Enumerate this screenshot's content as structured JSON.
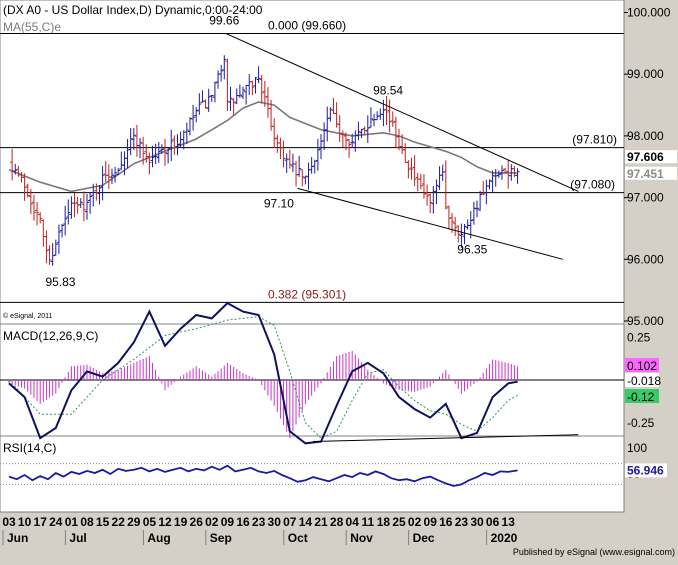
{
  "header": {
    "title": "(DX A0 - US Dollar Index,D) Dynamic,0:00-24:00",
    "ma_label": "MA(55,C)",
    "ma_suffix": "e",
    "copyright": "© eSignal, 2011",
    "publisher": "Published by eSignal (www.esignal.com)"
  },
  "colors": {
    "bull": "#1a1aa0",
    "bear": "#c02020",
    "ma": "#7a7a7a",
    "macd_line": "#101060",
    "signal_line": "#2a9a55",
    "histogram": "#cc33cc",
    "annotation": "#8b1a1a",
    "rsi": "#1a1aa0",
    "trendline": "#000000"
  },
  "chart_data": [
    {
      "type": "candlestick",
      "panel": "price",
      "y_range": [
        95.0,
        100.0
      ],
      "y_ticks": [
        "100.000",
        "99.000",
        "98.000",
        "97.000",
        "96.000",
        "95.000"
      ],
      "x_tick_labels": [
        "03",
        "10",
        "17",
        "24",
        "01",
        "08",
        "15",
        "22",
        "29",
        "05",
        "12",
        "19",
        "26",
        "02",
        "09",
        "16",
        "23",
        "30",
        "07",
        "14",
        "21",
        "28",
        "04",
        "11",
        "18",
        "25",
        "02",
        "09",
        "16",
        "23",
        "30",
        "06",
        "13"
      ],
      "month_labels": [
        "Jun",
        "Jul",
        "Aug",
        "Sep",
        "Oct",
        "Nov",
        "Dec",
        "2020"
      ],
      "month_positions": [
        0,
        4,
        9,
        13,
        18,
        22,
        26,
        31
      ],
      "close_path": [
        [
          0,
          97.6
        ],
        [
          1,
          97.2
        ],
        [
          2,
          96.6
        ],
        [
          2.6,
          95.95
        ],
        [
          3,
          96.3
        ],
        [
          4,
          96.85
        ],
        [
          5,
          96.9
        ],
        [
          6,
          97.3
        ],
        [
          7,
          97.5
        ],
        [
          8,
          98.0
        ],
        [
          9,
          97.6
        ],
        [
          10,
          97.8
        ],
        [
          11,
          97.9
        ],
        [
          12,
          98.4
        ],
        [
          13,
          98.6
        ],
        [
          13.8,
          99.3
        ],
        [
          14,
          98.5
        ],
        [
          15,
          98.7
        ],
        [
          16,
          98.95
        ],
        [
          17,
          98.0
        ],
        [
          18,
          97.5
        ],
        [
          19,
          97.3
        ],
        [
          20,
          97.9
        ],
        [
          20.6,
          98.4
        ],
        [
          21,
          98.15
        ],
        [
          22,
          97.9
        ],
        [
          23,
          98.2
        ],
        [
          24,
          98.5
        ],
        [
          25,
          97.9
        ],
        [
          26,
          97.3
        ],
        [
          27,
          96.9
        ],
        [
          27.8,
          97.4
        ],
        [
          28,
          96.8
        ],
        [
          29,
          96.4
        ],
        [
          30,
          96.9
        ],
        [
          31,
          97.3
        ],
        [
          32,
          97.4
        ],
        [
          32.6,
          97.45
        ]
      ],
      "moving_average_55": [
        [
          0,
          97.45
        ],
        [
          2,
          97.25
        ],
        [
          4,
          97.1
        ],
        [
          6,
          97.2
        ],
        [
          8,
          97.55
        ],
        [
          10,
          97.75
        ],
        [
          12,
          97.95
        ],
        [
          14,
          98.25
        ],
        [
          15,
          98.45
        ],
        [
          16,
          98.55
        ],
        [
          17,
          98.5
        ],
        [
          18,
          98.3
        ],
        [
          20,
          98.1
        ],
        [
          22,
          98.0
        ],
        [
          24,
          98.05
        ],
        [
          25,
          98.0
        ],
        [
          26,
          97.9
        ],
        [
          28,
          97.75
        ],
        [
          29,
          97.65
        ],
        [
          30,
          97.5
        ],
        [
          31,
          97.4
        ],
        [
          32.6,
          97.4
        ]
      ],
      "horizontal_levels": [
        {
          "value": 99.66,
          "label": "0.000 (99.660)"
        },
        {
          "value": 97.81,
          "label": "(97.810)"
        },
        {
          "value": 97.08,
          "label": "(97.080)"
        },
        {
          "value": 95.301,
          "label": "0.382 (95.301)"
        }
      ],
      "trendlines": [
        {
          "from": [
            13.9,
            99.66
          ],
          "to": [
            36.5,
            97.1
          ]
        },
        {
          "from": [
            18.5,
            97.15
          ],
          "to": [
            35.5,
            96.0
          ]
        }
      ],
      "price_labels": [
        {
          "text": "99.66",
          "x": 13.8,
          "y": 99.66
        },
        {
          "text": "98.54",
          "x": 24.3,
          "y": 98.54
        },
        {
          "text": "97.10",
          "x": 17.3,
          "y": 97.1
        },
        {
          "text": "96.35",
          "x": 29.7,
          "y": 96.35
        },
        {
          "text": "95.83",
          "x": 3.3,
          "y": 95.83
        }
      ],
      "current_value_tags": [
        {
          "text": "97.606",
          "value": 97.606,
          "color": "#000000"
        },
        {
          "text": "97.451",
          "value": 97.451,
          "color": "#8a8a8a"
        }
      ]
    },
    {
      "type": "line",
      "panel": "macd",
      "name": "MACD(12,26,9,C)",
      "y_range": [
        -0.45,
        0.45
      ],
      "y_ticks": [
        "0.25",
        "-0.25"
      ],
      "y_tick_values": [
        0.25,
        -0.25
      ],
      "zero_line": 0.0,
      "macd_path": [
        [
          0,
          -0.02
        ],
        [
          1,
          -0.1
        ],
        [
          2,
          -0.34
        ],
        [
          3,
          -0.28
        ],
        [
          4,
          -0.06
        ],
        [
          5,
          0.05
        ],
        [
          6,
          0.02
        ],
        [
          7,
          0.1
        ],
        [
          8,
          0.22
        ],
        [
          9,
          0.4
        ],
        [
          10,
          0.2
        ],
        [
          11,
          0.3
        ],
        [
          12,
          0.38
        ],
        [
          13,
          0.36
        ],
        [
          14,
          0.45
        ],
        [
          15,
          0.4
        ],
        [
          16,
          0.38
        ],
        [
          17,
          0.15
        ],
        [
          18,
          -0.3
        ],
        [
          19,
          -0.37
        ],
        [
          20,
          -0.36
        ],
        [
          21,
          -0.15
        ],
        [
          22,
          0.05
        ],
        [
          23,
          0.1
        ],
        [
          24,
          0.04
        ],
        [
          25,
          -0.1
        ],
        [
          26,
          -0.17
        ],
        [
          27,
          -0.22
        ],
        [
          28,
          -0.14
        ],
        [
          29,
          -0.34
        ],
        [
          30,
          -0.31
        ],
        [
          31,
          -0.1
        ],
        [
          32,
          -0.02
        ],
        [
          32.6,
          -0.01
        ]
      ],
      "signal_path": [
        [
          0,
          0.0
        ],
        [
          2,
          -0.2
        ],
        [
          4,
          -0.2
        ],
        [
          6,
          0.0
        ],
        [
          8,
          0.12
        ],
        [
          10,
          0.26
        ],
        [
          12,
          0.3
        ],
        [
          14,
          0.35
        ],
        [
          16,
          0.37
        ],
        [
          17,
          0.32
        ],
        [
          18,
          0.05
        ],
        [
          19,
          -0.25
        ],
        [
          20,
          -0.34
        ],
        [
          21,
          -0.3
        ],
        [
          22,
          -0.12
        ],
        [
          23,
          0.04
        ],
        [
          24,
          0.06
        ],
        [
          25,
          -0.04
        ],
        [
          26,
          -0.12
        ],
        [
          27,
          -0.18
        ],
        [
          28,
          -0.2
        ],
        [
          29,
          -0.26
        ],
        [
          30,
          -0.3
        ],
        [
          31,
          -0.22
        ],
        [
          32,
          -0.12
        ],
        [
          32.6,
          -0.09
        ]
      ],
      "histogram": [
        [
          0,
          -0.02
        ],
        [
          1,
          -0.05
        ],
        [
          2,
          -0.14
        ],
        [
          3,
          -0.08
        ],
        [
          4,
          0.08
        ],
        [
          5,
          0.09
        ],
        [
          6,
          0.04
        ],
        [
          7,
          0.06
        ],
        [
          8,
          0.1
        ],
        [
          9,
          0.14
        ],
        [
          10,
          -0.06
        ],
        [
          11,
          0.02
        ],
        [
          12,
          0.08
        ],
        [
          13,
          0.02
        ],
        [
          14,
          0.1
        ],
        [
          15,
          0.04
        ],
        [
          16,
          0.0
        ],
        [
          17,
          -0.15
        ],
        [
          18,
          -0.34
        ],
        [
          19,
          -0.14
        ],
        [
          20,
          -0.02
        ],
        [
          21,
          0.14
        ],
        [
          22,
          0.17
        ],
        [
          23,
          0.06
        ],
        [
          24,
          -0.02
        ],
        [
          25,
          -0.06
        ],
        [
          26,
          -0.07
        ],
        [
          27,
          -0.04
        ],
        [
          28,
          0.06
        ],
        [
          29,
          -0.08
        ],
        [
          30,
          -0.01
        ],
        [
          31,
          0.12
        ],
        [
          32,
          0.1
        ],
        [
          32.6,
          0.08
        ]
      ],
      "support_line": {
        "from": [
          19.5,
          -0.36
        ],
        "to": [
          36.5,
          -0.32
        ]
      },
      "value_tags": [
        {
          "text": "0.102",
          "value": 0.102,
          "bg": "#ff66ff",
          "fg": "#000000"
        },
        {
          "text": "-0.018",
          "value": -0.018,
          "bg": "#ffffff",
          "fg": "#000000"
        },
        {
          "text": "-0.12",
          "value": -0.12,
          "bg": "#33cc66",
          "fg": "#000000"
        }
      ]
    },
    {
      "type": "line",
      "panel": "rsi",
      "name": "RSI(14,C)",
      "y_range": [
        0,
        100
      ],
      "y_ticks": [
        "100",
        "50"
      ],
      "y_tick_values": [
        100,
        50
      ],
      "reference_levels": [
        70,
        30
      ],
      "rsi_path": [
        [
          0,
          45
        ],
        [
          0.5,
          40
        ],
        [
          1,
          48
        ],
        [
          1.5,
          38
        ],
        [
          2,
          46
        ],
        [
          2.5,
          40
        ],
        [
          3,
          52
        ],
        [
          3.5,
          45
        ],
        [
          4,
          54
        ],
        [
          4.5,
          50
        ],
        [
          5,
          56
        ],
        [
          5.5,
          52
        ],
        [
          6,
          58
        ],
        [
          6.5,
          50
        ],
        [
          7,
          60
        ],
        [
          7.5,
          56
        ],
        [
          8,
          58
        ],
        [
          8.5,
          62
        ],
        [
          9,
          55
        ],
        [
          9.5,
          60
        ],
        [
          10,
          54
        ],
        [
          10.5,
          58
        ],
        [
          11,
          62
        ],
        [
          11.5,
          55
        ],
        [
          12,
          60
        ],
        [
          12.5,
          57
        ],
        [
          13,
          64
        ],
        [
          13.5,
          58
        ],
        [
          14,
          66
        ],
        [
          14.5,
          55
        ],
        [
          15,
          58
        ],
        [
          15.5,
          62
        ],
        [
          16,
          55
        ],
        [
          16.5,
          52
        ],
        [
          17,
          56
        ],
        [
          17.5,
          48
        ],
        [
          18,
          42
        ],
        [
          18.5,
          35
        ],
        [
          19,
          38
        ],
        [
          19.5,
          44
        ],
        [
          20,
          40
        ],
        [
          20.5,
          36
        ],
        [
          21,
          42
        ],
        [
          21.5,
          48
        ],
        [
          22,
          44
        ],
        [
          22.5,
          52
        ],
        [
          23,
          48
        ],
        [
          23.5,
          55
        ],
        [
          24,
          50
        ],
        [
          24.5,
          42
        ],
        [
          25,
          38
        ],
        [
          25.5,
          40
        ],
        [
          26,
          36
        ],
        [
          26.5,
          42
        ],
        [
          27,
          45
        ],
        [
          27.5,
          38
        ],
        [
          28,
          32
        ],
        [
          28.5,
          27
        ],
        [
          29,
          30
        ],
        [
          29.5,
          38
        ],
        [
          30,
          44
        ],
        [
          30.5,
          52
        ],
        [
          31,
          48
        ],
        [
          31.5,
          55
        ],
        [
          32,
          54
        ],
        [
          32.6,
          56.946
        ]
      ],
      "value_tag": {
        "text": "56.946",
        "value": 56.946,
        "bg": "#ffffff",
        "fg": "#1a1aa0"
      }
    }
  ]
}
